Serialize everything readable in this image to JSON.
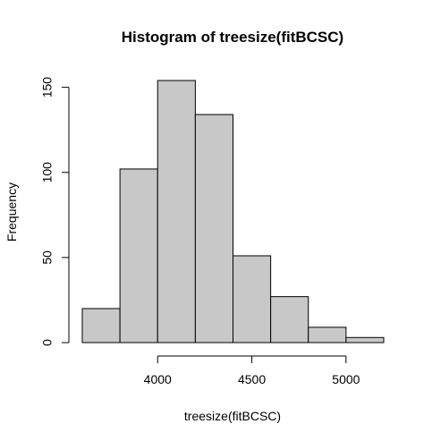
{
  "chart_data": {
    "type": "bar",
    "title": "Histogram of treesize(fitBCSC)",
    "xlabel": "treesize(fitBCSC)",
    "ylabel": "Frequency",
    "bins": [
      {
        "start": 3600,
        "end": 3800,
        "count": 20
      },
      {
        "start": 3800,
        "end": 4000,
        "count": 102
      },
      {
        "start": 4000,
        "end": 4200,
        "count": 154
      },
      {
        "start": 4200,
        "end": 4400,
        "count": 134
      },
      {
        "start": 4400,
        "end": 4600,
        "count": 51
      },
      {
        "start": 4600,
        "end": 4800,
        "count": 27
      },
      {
        "start": 4800,
        "end": 5000,
        "count": 9
      },
      {
        "start": 5000,
        "end": 5200,
        "count": 3
      }
    ],
    "x_ticks": [
      4000,
      4500,
      5000
    ],
    "y_ticks": [
      0,
      50,
      100,
      150
    ],
    "xlim": [
      3600,
      5200
    ],
    "ylim": [
      0,
      154
    ],
    "grid": false,
    "legend": "none",
    "colors": {
      "bar_fill": "#c8c8c8",
      "bar_stroke": "#000000",
      "axis": "#000000"
    }
  }
}
